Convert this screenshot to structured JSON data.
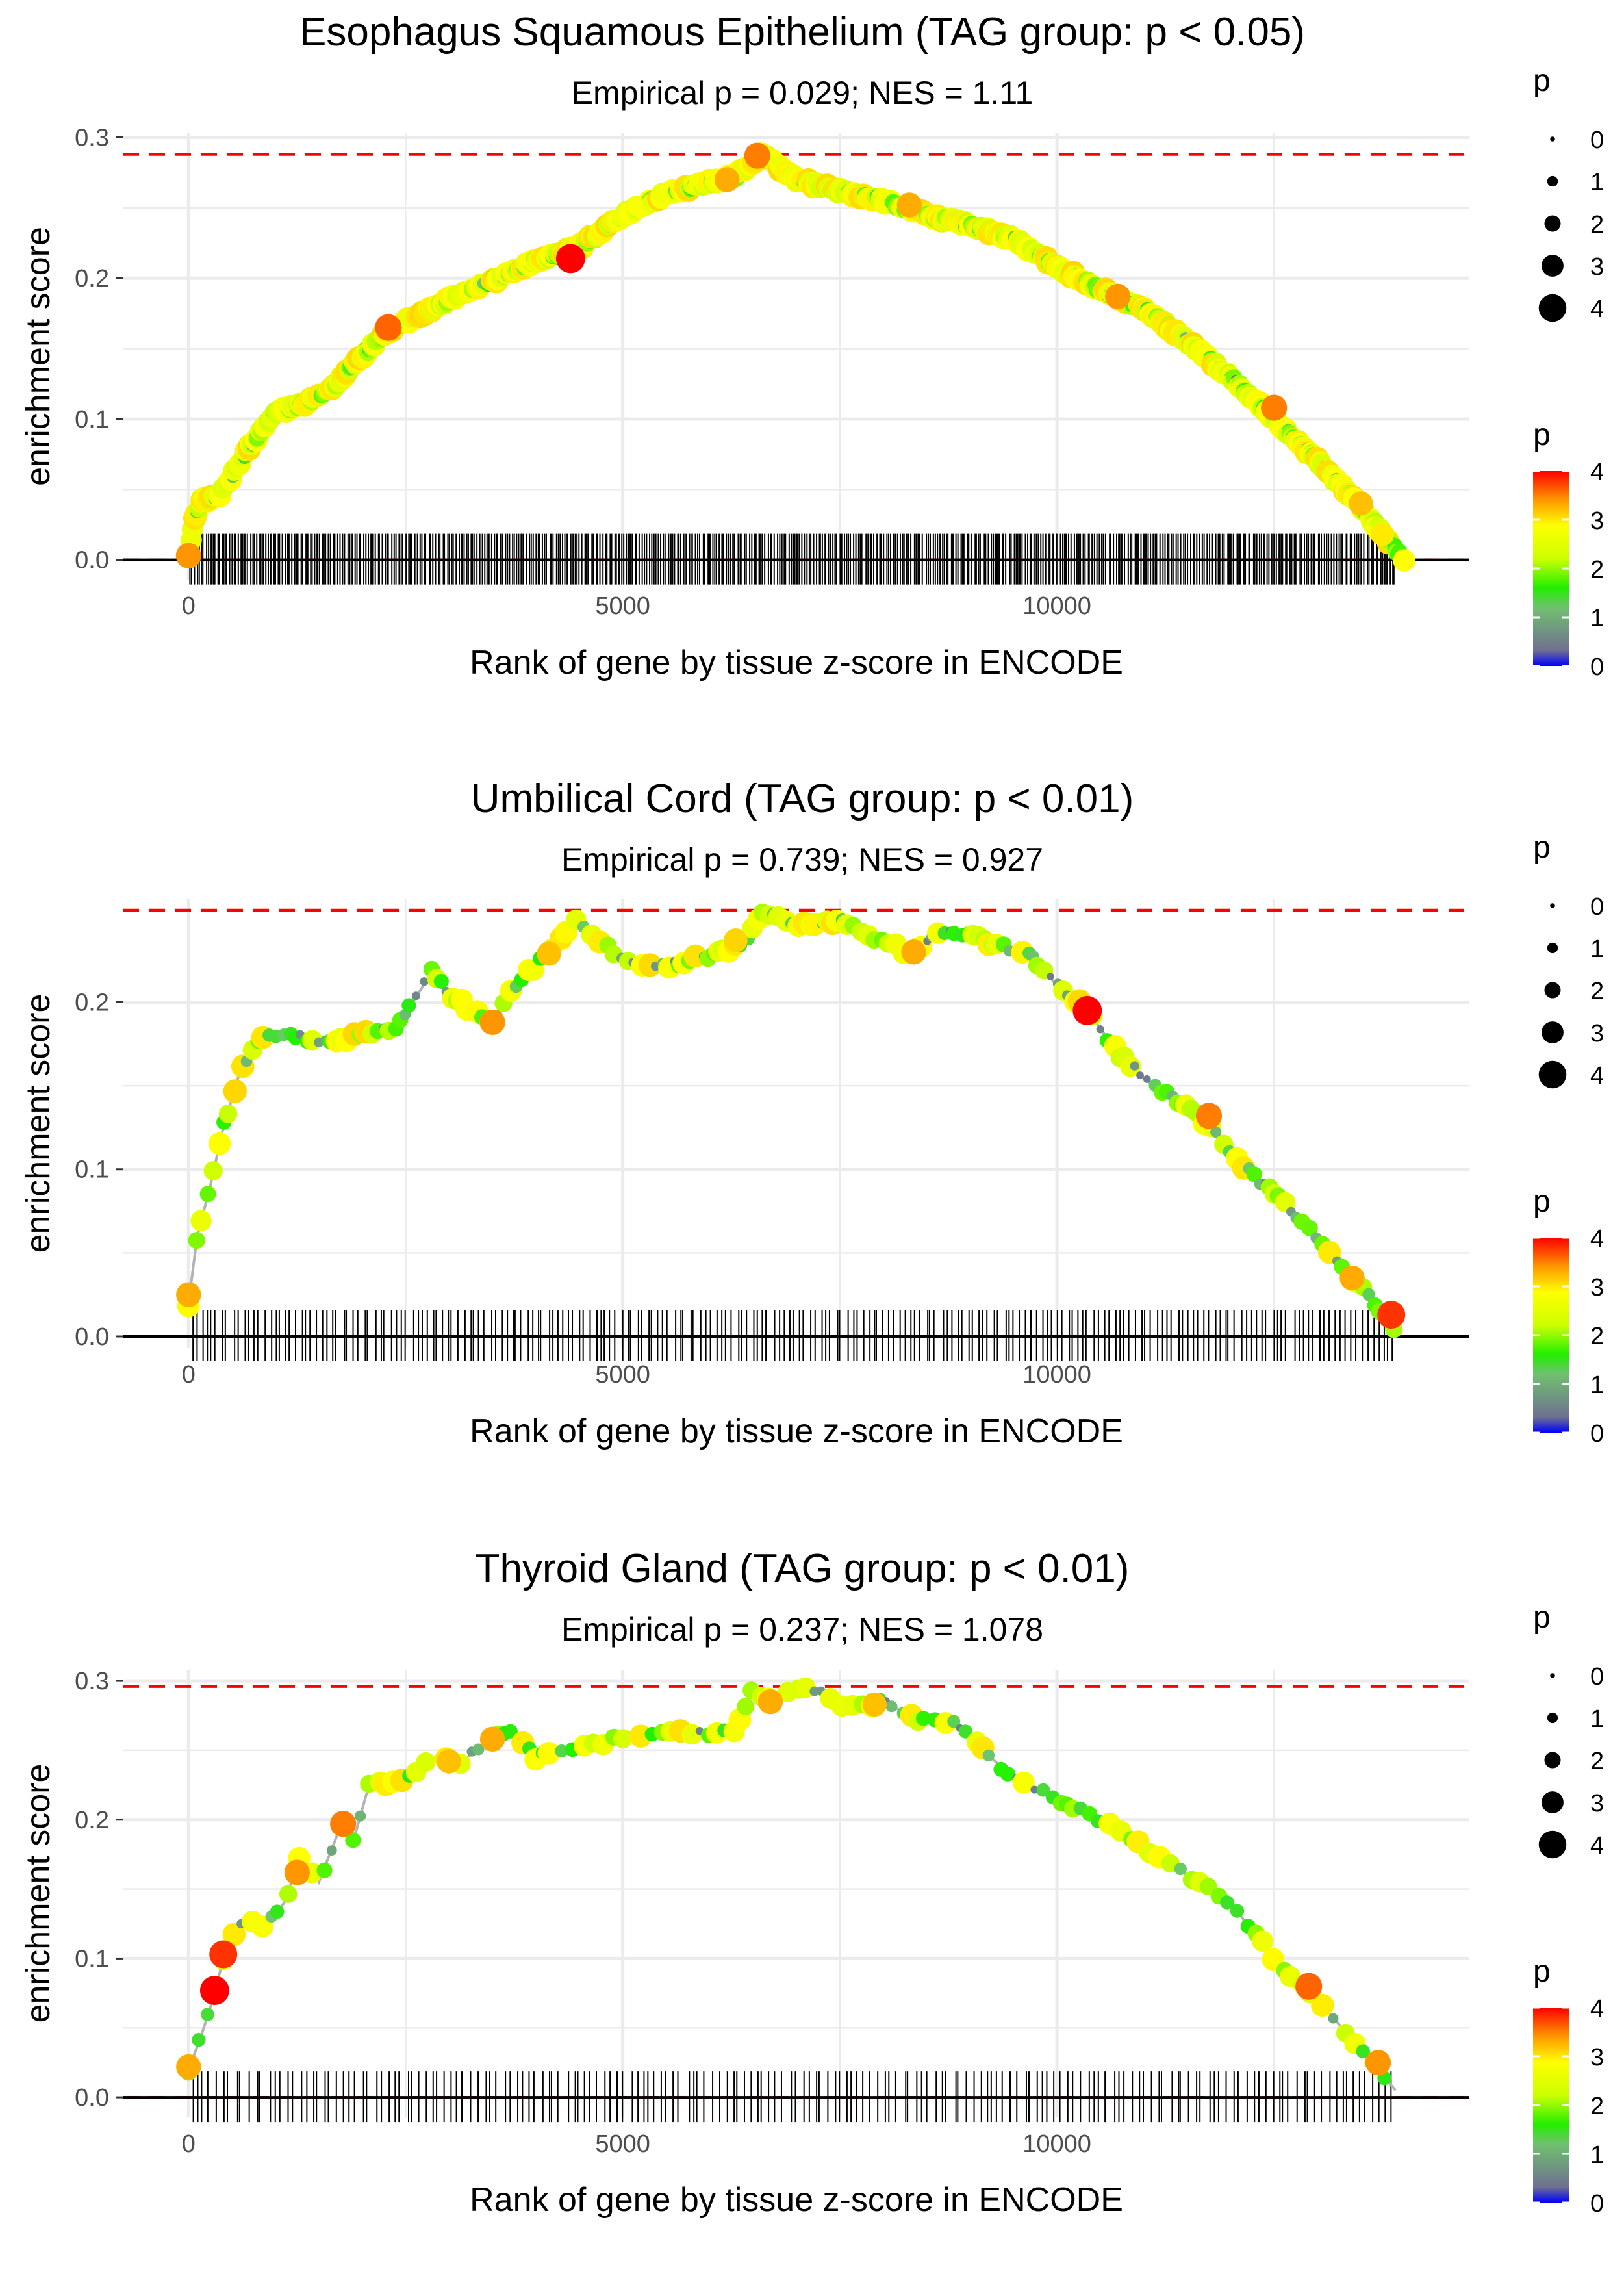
{
  "chart_data": [
    {
      "type": "line",
      "title": "Esophagus Squamous Epithelium (TAG group: p < 0.05)",
      "subtitle": "Empirical p = 0.029; NES = 1.11",
      "xlabel": "Rank of gene by tissue z-score in ENCODE",
      "ylabel": "enrichment score",
      "xlim": [
        -750,
        14750
      ],
      "ylim": [
        -0.014,
        0.303
      ],
      "xticks": [
        0,
        5000,
        10000
      ],
      "yticks": [
        0.0,
        0.1,
        0.2,
        0.3
      ],
      "max_es": 0.288,
      "point_density": 2.5,
      "rug_count": 520,
      "curve": [
        [
          0,
          0
        ],
        [
          60,
          0.03
        ],
        [
          150,
          0.042
        ],
        [
          350,
          0.045
        ],
        [
          500,
          0.06
        ],
        [
          700,
          0.08
        ],
        [
          1000,
          0.105
        ],
        [
          1300,
          0.11
        ],
        [
          1700,
          0.125
        ],
        [
          2000,
          0.145
        ],
        [
          2300,
          0.163
        ],
        [
          2700,
          0.175
        ],
        [
          3000,
          0.185
        ],
        [
          3500,
          0.198
        ],
        [
          4000,
          0.212
        ],
        [
          4500,
          0.222
        ],
        [
          5000,
          0.245
        ],
        [
          5500,
          0.26
        ],
        [
          6000,
          0.268
        ],
        [
          6300,
          0.272
        ],
        [
          6600,
          0.288
        ],
        [
          7000,
          0.27
        ],
        [
          7500,
          0.262
        ],
        [
          8000,
          0.255
        ],
        [
          8500,
          0.245
        ],
        [
          9000,
          0.238
        ],
        [
          9500,
          0.228
        ],
        [
          10000,
          0.208
        ],
        [
          10500,
          0.192
        ],
        [
          11000,
          0.178
        ],
        [
          11500,
          0.155
        ],
        [
          12000,
          0.13
        ],
        [
          12500,
          0.1
        ],
        [
          13000,
          0.07
        ],
        [
          13500,
          0.038
        ],
        [
          13800,
          0.015
        ],
        [
          14000,
          0
        ]
      ],
      "highlights": [
        [
          0,
          0.003,
          3.4
        ],
        [
          2300,
          0.165,
          3.6
        ],
        [
          4400,
          0.214,
          4.0
        ],
        [
          6550,
          0.287,
          3.5
        ],
        [
          6200,
          0.27,
          3.3
        ],
        [
          8300,
          0.252,
          3.3
        ],
        [
          10700,
          0.187,
          3.4
        ],
        [
          12500,
          0.108,
          3.5
        ],
        [
          13500,
          0.04,
          3.2
        ],
        [
          13750,
          0.018,
          3.0
        ]
      ]
    },
    {
      "type": "line",
      "title": "Umbilical Cord (TAG group: p < 0.01)",
      "subtitle": "Empirical p = 0.739; NES = 0.927",
      "xlabel": "Rank of gene by tissue z-score in ENCODE",
      "ylabel": "enrichment score",
      "xlim": [
        -750,
        14750
      ],
      "ylim": [
        -0.007,
        0.262
      ],
      "xticks": [
        0,
        5000,
        10000
      ],
      "yticks": [
        0.0,
        0.1,
        0.2
      ],
      "max_es": 0.255,
      "point_density": 0.9,
      "rug_count": 230,
      "curve": [
        [
          0,
          0.02
        ],
        [
          100,
          0.06
        ],
        [
          250,
          0.09
        ],
        [
          400,
          0.125
        ],
        [
          600,
          0.16
        ],
        [
          800,
          0.178
        ],
        [
          1100,
          0.182
        ],
        [
          1500,
          0.175
        ],
        [
          2000,
          0.18
        ],
        [
          2400,
          0.185
        ],
        [
          2800,
          0.218
        ],
        [
          3000,
          0.205
        ],
        [
          3500,
          0.186
        ],
        [
          3700,
          0.205
        ],
        [
          4100,
          0.228
        ],
        [
          4450,
          0.248
        ],
        [
          5000,
          0.225
        ],
        [
          5500,
          0.222
        ],
        [
          6000,
          0.228
        ],
        [
          6400,
          0.235
        ],
        [
          6600,
          0.255
        ],
        [
          7000,
          0.245
        ],
        [
          7500,
          0.248
        ],
        [
          7900,
          0.238
        ],
        [
          8300,
          0.23
        ],
        [
          8700,
          0.242
        ],
        [
          9000,
          0.24
        ],
        [
          9300,
          0.234
        ],
        [
          9700,
          0.228
        ],
        [
          10000,
          0.21
        ],
        [
          10350,
          0.195
        ],
        [
          10700,
          0.17
        ],
        [
          11100,
          0.15
        ],
        [
          11600,
          0.135
        ],
        [
          12000,
          0.11
        ],
        [
          12500,
          0.085
        ],
        [
          13000,
          0.06
        ],
        [
          13500,
          0.03
        ],
        [
          13900,
          0.005
        ]
      ],
      "highlights": [
        [
          0,
          0.025,
          3.3
        ],
        [
          3500,
          0.188,
          3.4
        ],
        [
          4150,
          0.229,
          3.2
        ],
        [
          6300,
          0.237,
          3.1
        ],
        [
          8350,
          0.23,
          3.3
        ],
        [
          10350,
          0.195,
          4.0
        ],
        [
          11750,
          0.132,
          3.5
        ],
        [
          13400,
          0.035,
          3.3
        ],
        [
          13850,
          0.013,
          3.8
        ]
      ]
    },
    {
      "type": "line",
      "title": "Thyroid Gland (TAG group: p < 0.01)",
      "subtitle": "Empirical p = 0.237; NES = 1.078",
      "xlabel": "Rank of gene by tissue z-score in ENCODE",
      "ylabel": "enrichment score",
      "xlim": [
        -750,
        14750
      ],
      "ylim": [
        -0.014,
        0.308
      ],
      "xticks": [
        0,
        5000,
        10000
      ],
      "yticks": [
        0.0,
        0.1,
        0.2,
        0.3
      ],
      "max_es": 0.296,
      "point_density": 0.7,
      "rug_count": 190,
      "curve": [
        [
          0,
          0.02
        ],
        [
          150,
          0.045
        ],
        [
          300,
          0.075
        ],
        [
          400,
          0.1
        ],
        [
          600,
          0.125
        ],
        [
          900,
          0.125
        ],
        [
          1100,
          0.14
        ],
        [
          1300,
          0.175
        ],
        [
          1500,
          0.155
        ],
        [
          1750,
          0.195
        ],
        [
          1900,
          0.185
        ],
        [
          2100,
          0.23
        ],
        [
          2400,
          0.225
        ],
        [
          2800,
          0.245
        ],
        [
          3100,
          0.24
        ],
        [
          3500,
          0.258
        ],
        [
          3700,
          0.265
        ],
        [
          4000,
          0.245
        ],
        [
          4400,
          0.252
        ],
        [
          4800,
          0.255
        ],
        [
          5000,
          0.26
        ],
        [
          5500,
          0.265
        ],
        [
          6000,
          0.262
        ],
        [
          6300,
          0.265
        ],
        [
          6500,
          0.295
        ],
        [
          6700,
          0.285
        ],
        [
          7000,
          0.295
        ],
        [
          7300,
          0.292
        ],
        [
          7600,
          0.28
        ],
        [
          8000,
          0.285
        ],
        [
          8400,
          0.272
        ],
        [
          8800,
          0.27
        ],
        [
          9500,
          0.23
        ],
        [
          10000,
          0.215
        ],
        [
          10500,
          0.2
        ],
        [
          11000,
          0.18
        ],
        [
          11500,
          0.16
        ],
        [
          12000,
          0.14
        ],
        [
          12500,
          0.1
        ],
        [
          13000,
          0.07
        ],
        [
          13500,
          0.035
        ],
        [
          13900,
          0.005
        ]
      ],
      "highlights": [
        [
          0,
          0.022,
          3.3
        ],
        [
          300,
          0.077,
          4.0
        ],
        [
          400,
          0.103,
          3.8
        ],
        [
          1250,
          0.162,
          3.4
        ],
        [
          1780,
          0.197,
          3.5
        ],
        [
          3000,
          0.242,
          3.2
        ],
        [
          3500,
          0.258,
          3.3
        ],
        [
          6700,
          0.285,
          3.3
        ],
        [
          7900,
          0.283,
          3.2
        ],
        [
          12900,
          0.08,
          3.6
        ],
        [
          13700,
          0.025,
          3.4
        ]
      ]
    }
  ],
  "legend": {
    "size_title": "p",
    "size_labels": [
      "0",
      "1",
      "2",
      "3",
      "4"
    ],
    "color_title": "p",
    "color_labels": [
      "0",
      "1",
      "2",
      "3",
      "4"
    ],
    "colors": [
      "#0000ff",
      "#00ff00",
      "#ffff00",
      "#ff8c00",
      "#ff0000"
    ]
  },
  "style": {
    "grid_color": "#ebebeb",
    "line_color": "#b3b3b3",
    "ref_color": "#ff0000",
    "rug_color": "#000000"
  }
}
